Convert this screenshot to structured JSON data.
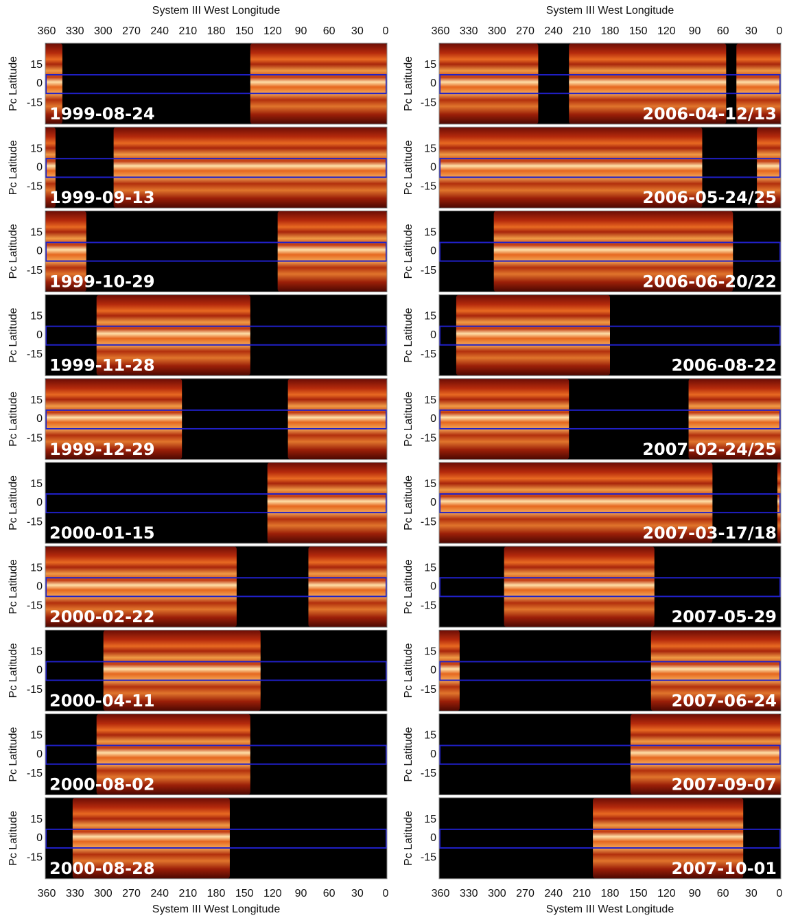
{
  "columns": [
    {
      "x_axis_title": "System III West Longitude",
      "x_ticks": [
        "360",
        "330",
        "300",
        "270",
        "240",
        "210",
        "180",
        "150",
        "120",
        "90",
        "60",
        "30",
        "0"
      ],
      "y_axis_label": "Pc Latitude",
      "y_ticks": [
        "15",
        "0",
        "-15"
      ],
      "panels": [
        {
          "date": "1999-08-24"
        },
        {
          "date": "1999-09-13"
        },
        {
          "date": "1999-10-29"
        },
        {
          "date": "1999-11-28"
        },
        {
          "date": "1999-12-29"
        },
        {
          "date": "2000-01-15"
        },
        {
          "date": "2000-02-22"
        },
        {
          "date": "2000-04-11"
        },
        {
          "date": "2000-08-02"
        },
        {
          "date": "2000-08-28"
        }
      ]
    },
    {
      "x_axis_title": "System III West Longitude",
      "x_ticks": [
        "360",
        "330",
        "300",
        "270",
        "240",
        "210",
        "180",
        "150",
        "120",
        "90",
        "60",
        "30",
        "0"
      ],
      "y_axis_label": "Pc Latitude",
      "y_ticks": [
        "15",
        "0",
        "-15"
      ],
      "panels": [
        {
          "date": "2006-04-12/13"
        },
        {
          "date": "2006-05-24/25"
        },
        {
          "date": "2006-06-20/22"
        },
        {
          "date": "2006-08-22"
        },
        {
          "date": "2007-02-24/25"
        },
        {
          "date": "2007-03-17/18"
        },
        {
          "date": "2007-05-29"
        },
        {
          "date": "2007-06-24"
        },
        {
          "date": "2007-09-07"
        },
        {
          "date": "2007-10-01"
        }
      ]
    }
  ]
}
